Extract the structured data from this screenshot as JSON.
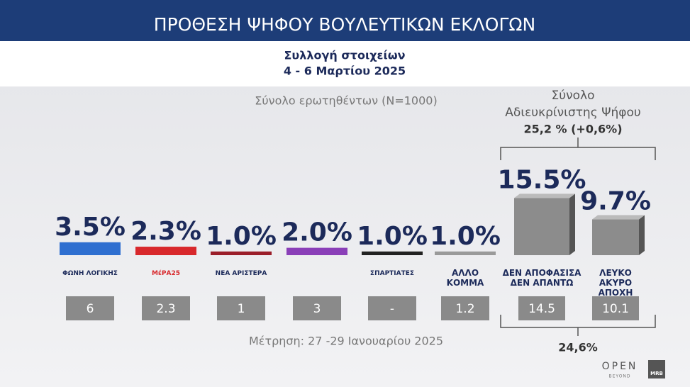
{
  "header": {
    "title": "ΠΡΟΘΕΣΗ ΨΗΦΟΥ ΒΟΥΛΕΥΤΙΚΩΝ ΕΚΛΟΓΩΝ",
    "subtitle": [
      "Συλλογή στοιχείων",
      "4 - 6 Μαρτίου 2025"
    ]
  },
  "chart_data": {
    "type": "bar",
    "note": "Σύνολο ερωτηθέντων (N=1000)",
    "categories": [
      "ΦΩΝΗ ΛΟΓΙΚΗΣ",
      "ΜέΡΑ25",
      "ΝΕΑ ΑΡΙΣΤΕΡΑ",
      null,
      "ΣΠΑΡΤΙΑΤΕΣ",
      "ΑΛΛΟ\nΚΟΜΜΑ",
      "ΔΕΝ ΑΠΟΦΑΣΙΣΑ\nΔΕΝ ΑΠΑΝΤΩ",
      "ΛΕΥΚΟ\nΑΚΥΡΟ\nΑΠΟΧΗ"
    ],
    "values": [
      3.5,
      2.3,
      1.0,
      2.0,
      1.0,
      1.0,
      15.5,
      9.7
    ],
    "value_labels": [
      "3.5%",
      "2.3%",
      "1.0%",
      "2.0%",
      "1.0%",
      "1.0%",
      "15.5%",
      "9.7%"
    ],
    "colors": [
      "#2f6fd0",
      "#d8282c",
      "#9b1e2a",
      "#8a3fb8",
      "#222222",
      "#9a9a9a",
      "#8c8c8c",
      "#8c8c8c"
    ],
    "previous": {
      "label": "Μέτρηση: 27 -29 Ιανουαρίου 2025",
      "values": [
        6,
        2.3,
        1,
        3,
        null,
        1.2,
        14.5,
        10.1
      ],
      "value_labels": [
        "6",
        "2.3",
        "1",
        "3",
        "-",
        "1.2",
        "14.5",
        "10.1"
      ]
    },
    "group": {
      "title": [
        "Σύνολο",
        "Αδιευκρίνιστης  Ψήφου"
      ],
      "total": "25,2 % (+0,6%)",
      "previous_total": "24,6%"
    }
  },
  "logos": {
    "open": "OPEN",
    "beyond": "BEYOND",
    "mrb": "MRB"
  }
}
